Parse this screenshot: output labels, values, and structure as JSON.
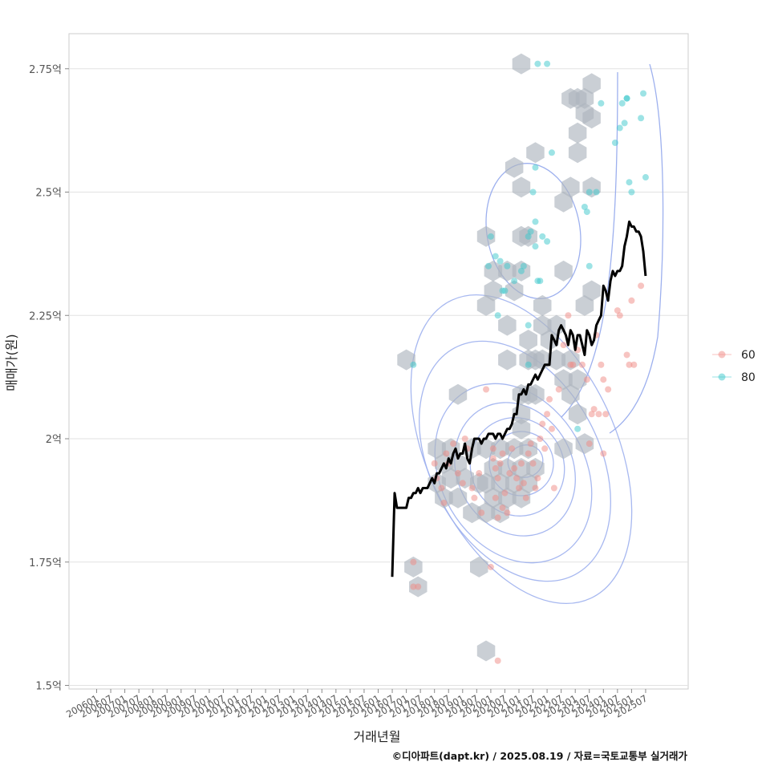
{
  "chart_data": {
    "type": "scatter",
    "xlabel": "거래년월",
    "ylabel": "매매가(원)",
    "caption": "©디아파트(dapt.kr) / 2025.08.19 / 자료=국토교통부 실거래가",
    "ylim": [
      1.49,
      2.82
    ],
    "y_ticks": [
      {
        "value": 1.5,
        "label": "1.5억"
      },
      {
        "value": 1.75,
        "label": "1.75억"
      },
      {
        "value": 2.0,
        "label": "2억"
      },
      {
        "value": 2.25,
        "label": "2.25억"
      },
      {
        "value": 2.5,
        "label": "2.5억"
      },
      {
        "value": 2.75,
        "label": "2.75억"
      }
    ],
    "x_ticks": [
      "200601",
      "200607",
      "200701",
      "200707",
      "200801",
      "200807",
      "200901",
      "200907",
      "201001",
      "201007",
      "201101",
      "201107",
      "201201",
      "201207",
      "201301",
      "201307",
      "201401",
      "201407",
      "201501",
      "201507",
      "201601",
      "201607",
      "201701",
      "201707",
      "201801",
      "201807",
      "201901",
      "201907",
      "202001",
      "202007",
      "202101",
      "202107",
      "202201",
      "202207",
      "202301",
      "202307",
      "202401",
      "202407",
      "202501",
      "202507"
    ],
    "grid": true,
    "legend_position": "right",
    "colors": {
      "60": "#F08A84",
      "80": "#3CC8CC",
      "trend": "#000000",
      "hex": "#AEB5BF",
      "contour": "#9DB0EE"
    },
    "series": [
      {
        "name": "60",
        "points": [
          [
            "2017-04",
            1.75
          ],
          [
            "2017-04",
            1.7
          ],
          [
            "2017-06",
            1.7
          ],
          [
            "2018-01",
            1.95
          ],
          [
            "2018-02",
            1.92
          ],
          [
            "2018-04",
            1.9
          ],
          [
            "2018-05",
            1.87
          ],
          [
            "2018-06",
            1.97
          ],
          [
            "2018-07",
            1.95
          ],
          [
            "2018-09",
            1.99
          ],
          [
            "2018-11",
            1.93
          ],
          [
            "2019-01",
            1.91
          ],
          [
            "2019-02",
            2.0
          ],
          [
            "2019-03",
            1.98
          ],
          [
            "2019-05",
            1.9
          ],
          [
            "2019-06",
            1.88
          ],
          [
            "2019-08",
            1.93
          ],
          [
            "2019-09",
            1.85
          ],
          [
            "2019-11",
            2.1
          ],
          [
            "2020-01",
            1.74
          ],
          [
            "2020-02",
            1.98
          ],
          [
            "2020-02",
            1.96
          ],
          [
            "2020-03",
            1.94
          ],
          [
            "2020-03",
            1.88
          ],
          [
            "2020-04",
            1.92
          ],
          [
            "2020-04",
            1.84
          ],
          [
            "2020-04",
            1.55
          ],
          [
            "2020-05",
            1.95
          ],
          [
            "2020-06",
            1.97
          ],
          [
            "2020-06",
            1.86
          ],
          [
            "2020-07",
            1.89
          ],
          [
            "2020-08",
            1.85
          ],
          [
            "2020-09",
            1.93
          ],
          [
            "2020-10",
            1.98
          ],
          [
            "2020-11",
            1.94
          ],
          [
            "2020-12",
            1.92
          ],
          [
            "2021-01",
            1.9
          ],
          [
            "2021-02",
            1.95
          ],
          [
            "2021-03",
            1.91
          ],
          [
            "2021-04",
            1.88
          ],
          [
            "2021-05",
            1.97
          ],
          [
            "2021-06",
            1.99
          ],
          [
            "2021-07",
            1.95
          ],
          [
            "2021-08",
            1.9
          ],
          [
            "2021-09",
            1.92
          ],
          [
            "2021-10",
            2.0
          ],
          [
            "2021-11",
            2.03
          ],
          [
            "2021-12",
            1.98
          ],
          [
            "2022-01",
            2.05
          ],
          [
            "2022-02",
            2.08
          ],
          [
            "2022-03",
            2.02
          ],
          [
            "2022-04",
            1.9
          ],
          [
            "2022-06",
            2.1
          ],
          [
            "2022-08",
            2.19
          ],
          [
            "2022-10",
            2.25
          ],
          [
            "2022-11",
            2.15
          ],
          [
            "2022-12",
            2.15
          ],
          [
            "2023-02",
            2.18
          ],
          [
            "2023-04",
            2.15
          ],
          [
            "2023-06",
            2.12
          ],
          [
            "2023-07",
            1.99
          ],
          [
            "2023-08",
            2.05
          ],
          [
            "2023-09",
            2.06
          ],
          [
            "2023-10",
            2.21
          ],
          [
            "2023-11",
            2.05
          ],
          [
            "2023-12",
            2.15
          ],
          [
            "2024-01",
            1.97
          ],
          [
            "2024-01",
            2.12
          ],
          [
            "2024-02",
            2.05
          ],
          [
            "2024-03",
            2.1
          ],
          [
            "2024-07",
            2.26
          ],
          [
            "2024-08",
            2.25
          ],
          [
            "2024-11",
            2.17
          ],
          [
            "2024-12",
            2.15
          ],
          [
            "2025-01",
            2.28
          ],
          [
            "2025-02",
            2.15
          ],
          [
            "2025-05",
            2.31
          ]
        ]
      },
      {
        "name": "80",
        "points": [
          [
            "2017-04",
            2.15
          ],
          [
            "2019-12",
            2.35
          ],
          [
            "2020-04",
            2.25
          ],
          [
            "2020-05",
            2.36
          ],
          [
            "2020-06",
            2.3
          ],
          [
            "2020-07",
            2.3
          ],
          [
            "2020-08",
            2.35
          ],
          [
            "2020-01",
            2.41
          ],
          [
            "2020-03",
            2.37
          ],
          [
            "2020-11",
            2.32
          ],
          [
            "2021-02",
            2.34
          ],
          [
            "2021-03",
            2.35
          ],
          [
            "2021-05",
            2.23
          ],
          [
            "2021-05",
            2.41
          ],
          [
            "2021-06",
            2.42
          ],
          [
            "2021-08",
            2.44
          ],
          [
            "2021-08",
            2.39
          ],
          [
            "2021-09",
            2.32
          ],
          [
            "2021-10",
            2.32
          ],
          [
            "2021-11",
            2.41
          ],
          [
            "2022-01",
            2.4
          ],
          [
            "2021-07",
            2.5
          ],
          [
            "2021-08",
            2.55
          ],
          [
            "2021-09",
            2.76
          ],
          [
            "2022-01",
            2.76
          ],
          [
            "2022-03",
            2.58
          ],
          [
            "2021-05",
            2.15
          ],
          [
            "2023-02",
            2.02
          ],
          [
            "2023-05",
            2.47
          ],
          [
            "2023-06",
            2.46
          ],
          [
            "2023-07",
            2.5
          ],
          [
            "2023-10",
            2.5
          ],
          [
            "2023-07",
            2.35
          ],
          [
            "2023-12",
            2.68
          ],
          [
            "2024-06",
            2.6
          ],
          [
            "2024-08",
            2.63
          ],
          [
            "2024-10",
            2.64
          ],
          [
            "2024-11",
            2.69
          ],
          [
            "2024-11",
            2.69
          ],
          [
            "2024-09",
            2.68
          ],
          [
            "2024-12",
            2.52
          ],
          [
            "2025-01",
            2.5
          ],
          [
            "2025-05",
            2.65
          ],
          [
            "2025-06",
            2.7
          ],
          [
            "2025-07",
            2.53
          ]
        ]
      }
    ],
    "trend": [
      [
        "2016-07",
        1.72
      ],
      [
        "2016-08",
        1.89
      ],
      [
        "2016-09",
        1.86
      ],
      [
        "2016-10",
        1.86
      ],
      [
        "2016-11",
        1.86
      ],
      [
        "2016-12",
        1.86
      ],
      [
        "2017-01",
        1.86
      ],
      [
        "2017-02",
        1.88
      ],
      [
        "2017-03",
        1.88
      ],
      [
        "2017-04",
        1.89
      ],
      [
        "2017-05",
        1.89
      ],
      [
        "2017-06",
        1.9
      ],
      [
        "2017-07",
        1.89
      ],
      [
        "2017-08",
        1.9
      ],
      [
        "2017-09",
        1.9
      ],
      [
        "2017-10",
        1.9
      ],
      [
        "2017-11",
        1.91
      ],
      [
        "2017-12",
        1.92
      ],
      [
        "2018-01",
        1.91
      ],
      [
        "2018-02",
        1.93
      ],
      [
        "2018-03",
        1.93
      ],
      [
        "2018-04",
        1.94
      ],
      [
        "2018-05",
        1.95
      ],
      [
        "2018-06",
        1.94
      ],
      [
        "2018-07",
        1.96
      ],
      [
        "2018-08",
        1.95
      ],
      [
        "2018-09",
        1.97
      ],
      [
        "2018-10",
        1.98
      ],
      [
        "2018-11",
        1.96
      ],
      [
        "2018-12",
        1.97
      ],
      [
        "2019-01",
        1.97
      ],
      [
        "2019-02",
        1.99
      ],
      [
        "2019-03",
        1.96
      ],
      [
        "2019-04",
        1.95
      ],
      [
        "2019-05",
        1.98
      ],
      [
        "2019-06",
        2.0
      ],
      [
        "2019-07",
        2.0
      ],
      [
        "2019-08",
        2.0
      ],
      [
        "2019-09",
        1.99
      ],
      [
        "2019-10",
        2.0
      ],
      [
        "2019-11",
        2.0
      ],
      [
        "2019-12",
        2.01
      ],
      [
        "2020-01",
        2.01
      ],
      [
        "2020-02",
        2.01
      ],
      [
        "2020-03",
        2.0
      ],
      [
        "2020-04",
        2.01
      ],
      [
        "2020-05",
        2.01
      ],
      [
        "2020-06",
        2.0
      ],
      [
        "2020-07",
        2.01
      ],
      [
        "2020-08",
        2.02
      ],
      [
        "2020-09",
        2.02
      ],
      [
        "2020-10",
        2.03
      ],
      [
        "2020-11",
        2.05
      ],
      [
        "2020-12",
        2.05
      ],
      [
        "2021-01",
        2.09
      ],
      [
        "2021-02",
        2.09
      ],
      [
        "2021-03",
        2.1
      ],
      [
        "2021-04",
        2.09
      ],
      [
        "2021-05",
        2.11
      ],
      [
        "2021-06",
        2.11
      ],
      [
        "2021-07",
        2.12
      ],
      [
        "2021-08",
        2.13
      ],
      [
        "2021-09",
        2.12
      ],
      [
        "2021-10",
        2.13
      ],
      [
        "2021-11",
        2.14
      ],
      [
        "2021-12",
        2.15
      ],
      [
        "2022-01",
        2.15
      ],
      [
        "2022-02",
        2.15
      ],
      [
        "2022-03",
        2.21
      ],
      [
        "2022-04",
        2.2
      ],
      [
        "2022-05",
        2.19
      ],
      [
        "2022-06",
        2.22
      ],
      [
        "2022-07",
        2.23
      ],
      [
        "2022-08",
        2.22
      ],
      [
        "2022-09",
        2.21
      ],
      [
        "2022-10",
        2.19
      ],
      [
        "2022-11",
        2.22
      ],
      [
        "2022-12",
        2.21
      ],
      [
        "2023-01",
        2.18
      ],
      [
        "2023-02",
        2.21
      ],
      [
        "2023-03",
        2.21
      ],
      [
        "2023-04",
        2.19
      ],
      [
        "2023-05",
        2.17
      ],
      [
        "2023-06",
        2.22
      ],
      [
        "2023-07",
        2.21
      ],
      [
        "2023-08",
        2.19
      ],
      [
        "2023-09",
        2.2
      ],
      [
        "2023-10",
        2.23
      ],
      [
        "2023-11",
        2.24
      ],
      [
        "2023-12",
        2.25
      ],
      [
        "2024-01",
        2.31
      ],
      [
        "2024-02",
        2.3
      ],
      [
        "2024-03",
        2.28
      ],
      [
        "2024-04",
        2.32
      ],
      [
        "2024-05",
        2.34
      ],
      [
        "2024-06",
        2.33
      ],
      [
        "2024-07",
        2.34
      ],
      [
        "2024-08",
        2.34
      ],
      [
        "2024-09",
        2.35
      ],
      [
        "2024-10",
        2.39
      ],
      [
        "2024-11",
        2.41
      ],
      [
        "2024-12",
        2.44
      ],
      [
        "2025-01",
        2.43
      ],
      [
        "2025-02",
        2.43
      ],
      [
        "2025-03",
        2.42
      ],
      [
        "2025-04",
        2.42
      ],
      [
        "2025-05",
        2.41
      ],
      [
        "2025-06",
        2.38
      ],
      [
        "2025-07",
        2.33
      ]
    ],
    "hexbins": [
      [
        "2017-01",
        2.16
      ],
      [
        "2017-04",
        1.74
      ],
      [
        "2017-06",
        1.7
      ],
      [
        "2018-02",
        1.98
      ],
      [
        "2018-02",
        1.91
      ],
      [
        "2018-05",
        1.88
      ],
      [
        "2018-05",
        1.95
      ],
      [
        "2018-08",
        1.92
      ],
      [
        "2018-08",
        1.98
      ],
      [
        "2018-11",
        1.88
      ],
      [
        "2018-11",
        1.95
      ],
      [
        "2018-11",
        2.09
      ],
      [
        "2019-02",
        1.92
      ],
      [
        "2019-05",
        1.85
      ],
      [
        "2019-05",
        1.98
      ],
      [
        "2019-08",
        1.91
      ],
      [
        "2019-08",
        1.74
      ],
      [
        "2019-11",
        1.98
      ],
      [
        "2019-11",
        1.91
      ],
      [
        "2019-11",
        1.85
      ],
      [
        "2019-11",
        2.41
      ],
      [
        "2019-11",
        2.27
      ],
      [
        "2019-11",
        1.57
      ],
      [
        "2020-02",
        1.94
      ],
      [
        "2020-02",
        1.88
      ],
      [
        "2020-02",
        2.34
      ],
      [
        "2020-02",
        2.3
      ],
      [
        "2020-05",
        1.98
      ],
      [
        "2020-05",
        1.91
      ],
      [
        "2020-05",
        1.85
      ],
      [
        "2020-08",
        1.94
      ],
      [
        "2020-08",
        1.88
      ],
      [
        "2020-08",
        2.34
      ],
      [
        "2020-08",
        2.16
      ],
      [
        "2020-08",
        2.23
      ],
      [
        "2020-11",
        1.98
      ],
      [
        "2020-11",
        1.91
      ],
      [
        "2020-11",
        2.3
      ],
      [
        "2020-11",
        2.55
      ],
      [
        "2021-02",
        1.94
      ],
      [
        "2021-02",
        1.88
      ],
      [
        "2021-02",
        2.05
      ],
      [
        "2021-02",
        2.02
      ],
      [
        "2021-02",
        2.09
      ],
      [
        "2021-02",
        2.41
      ],
      [
        "2021-02",
        2.51
      ],
      [
        "2021-02",
        2.34
      ],
      [
        "2021-02",
        2.76
      ],
      [
        "2021-05",
        1.98
      ],
      [
        "2021-05",
        1.91
      ],
      [
        "2021-05",
        2.09
      ],
      [
        "2021-05",
        2.2
      ],
      [
        "2021-05",
        2.41
      ],
      [
        "2021-05",
        2.16
      ],
      [
        "2021-08",
        1.94
      ],
      [
        "2021-08",
        2.16
      ],
      [
        "2021-08",
        2.58
      ],
      [
        "2021-08",
        2.09
      ],
      [
        "2021-11",
        2.23
      ],
      [
        "2021-11",
        2.27
      ],
      [
        "2021-11",
        2.16
      ],
      [
        "2022-02",
        2.2
      ],
      [
        "2022-05",
        2.23
      ],
      [
        "2022-05",
        2.16
      ],
      [
        "2022-08",
        2.48
      ],
      [
        "2022-08",
        2.34
      ],
      [
        "2022-08",
        2.12
      ],
      [
        "2022-08",
        1.98
      ],
      [
        "2022-11",
        2.51
      ],
      [
        "2022-11",
        2.16
      ],
      [
        "2022-11",
        2.09
      ],
      [
        "2022-11",
        2.69
      ],
      [
        "2023-02",
        2.58
      ],
      [
        "2023-02",
        2.62
      ],
      [
        "2023-02",
        2.69
      ],
      [
        "2023-05",
        2.66
      ],
      [
        "2023-05",
        2.69
      ],
      [
        "2023-05",
        2.27
      ],
      [
        "2023-08",
        2.51
      ],
      [
        "2023-08",
        2.65
      ],
      [
        "2023-08",
        2.72
      ],
      [
        "2023-08",
        2.3
      ],
      [
        "2023-05",
        1.99
      ],
      [
        "2023-02",
        2.12
      ],
      [
        "2023-02",
        2.05
      ]
    ]
  },
  "legend": {
    "items": [
      {
        "label": "60",
        "color": "#F08A84"
      },
      {
        "label": "80",
        "color": "#3CC8CC"
      }
    ]
  }
}
